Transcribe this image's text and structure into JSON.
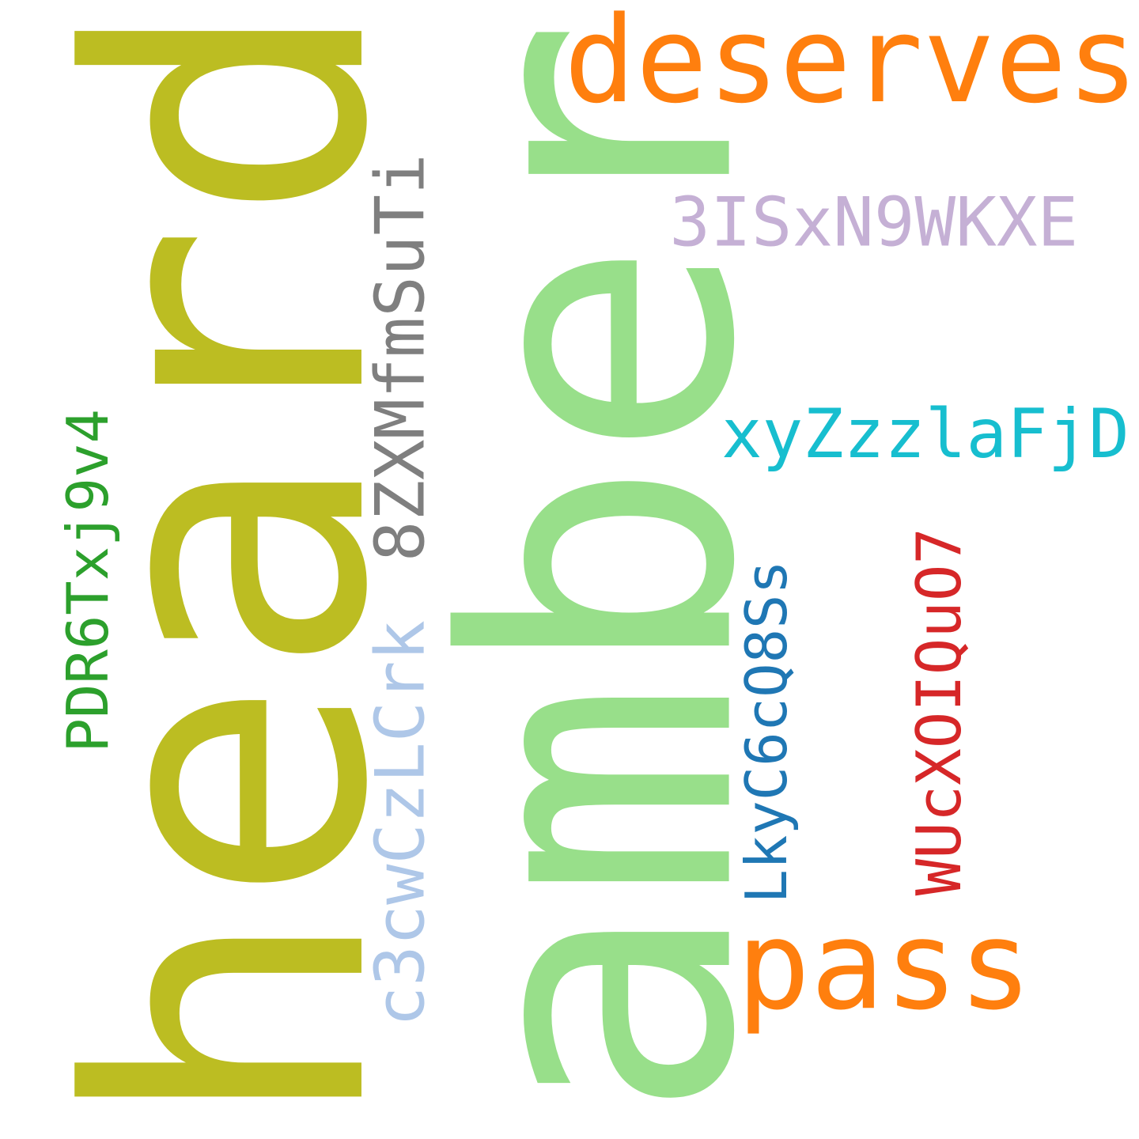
{
  "words": {
    "heard": {
      "text": "heard",
      "color": "#bcbd22"
    },
    "amber": {
      "text": "amber",
      "color": "#98df8a"
    },
    "deserves": {
      "text": "deserves",
      "color": "#ff7f0e"
    },
    "pass": {
      "text": "pass",
      "color": "#ff7f0e"
    },
    "code_3ISxN9WKXE": {
      "text": "3ISxN9WKXE",
      "color": "#c5b0d5"
    },
    "code_xyZzzlaFjD": {
      "text": "xyZzzlaFjD",
      "color": "#17becf"
    },
    "code_8ZXMfmSuTi": {
      "text": "8ZXMfmSuTi",
      "color": "#7f7f7f"
    },
    "code_PDR6Txj9v4": {
      "text": "PDR6Txj9v4",
      "color": "#2ca02c"
    },
    "code_c3cwCzLCrk": {
      "text": "c3cwCzLCrk",
      "color": "#aec7e8"
    },
    "code_LkyC6cQ8Ss": {
      "text": "LkyC6cQ8Ss",
      "color": "#1f77b4"
    },
    "code_WUcXOIQuO7": {
      "text": "WUcXOIQuO7",
      "color": "#d62728"
    }
  }
}
